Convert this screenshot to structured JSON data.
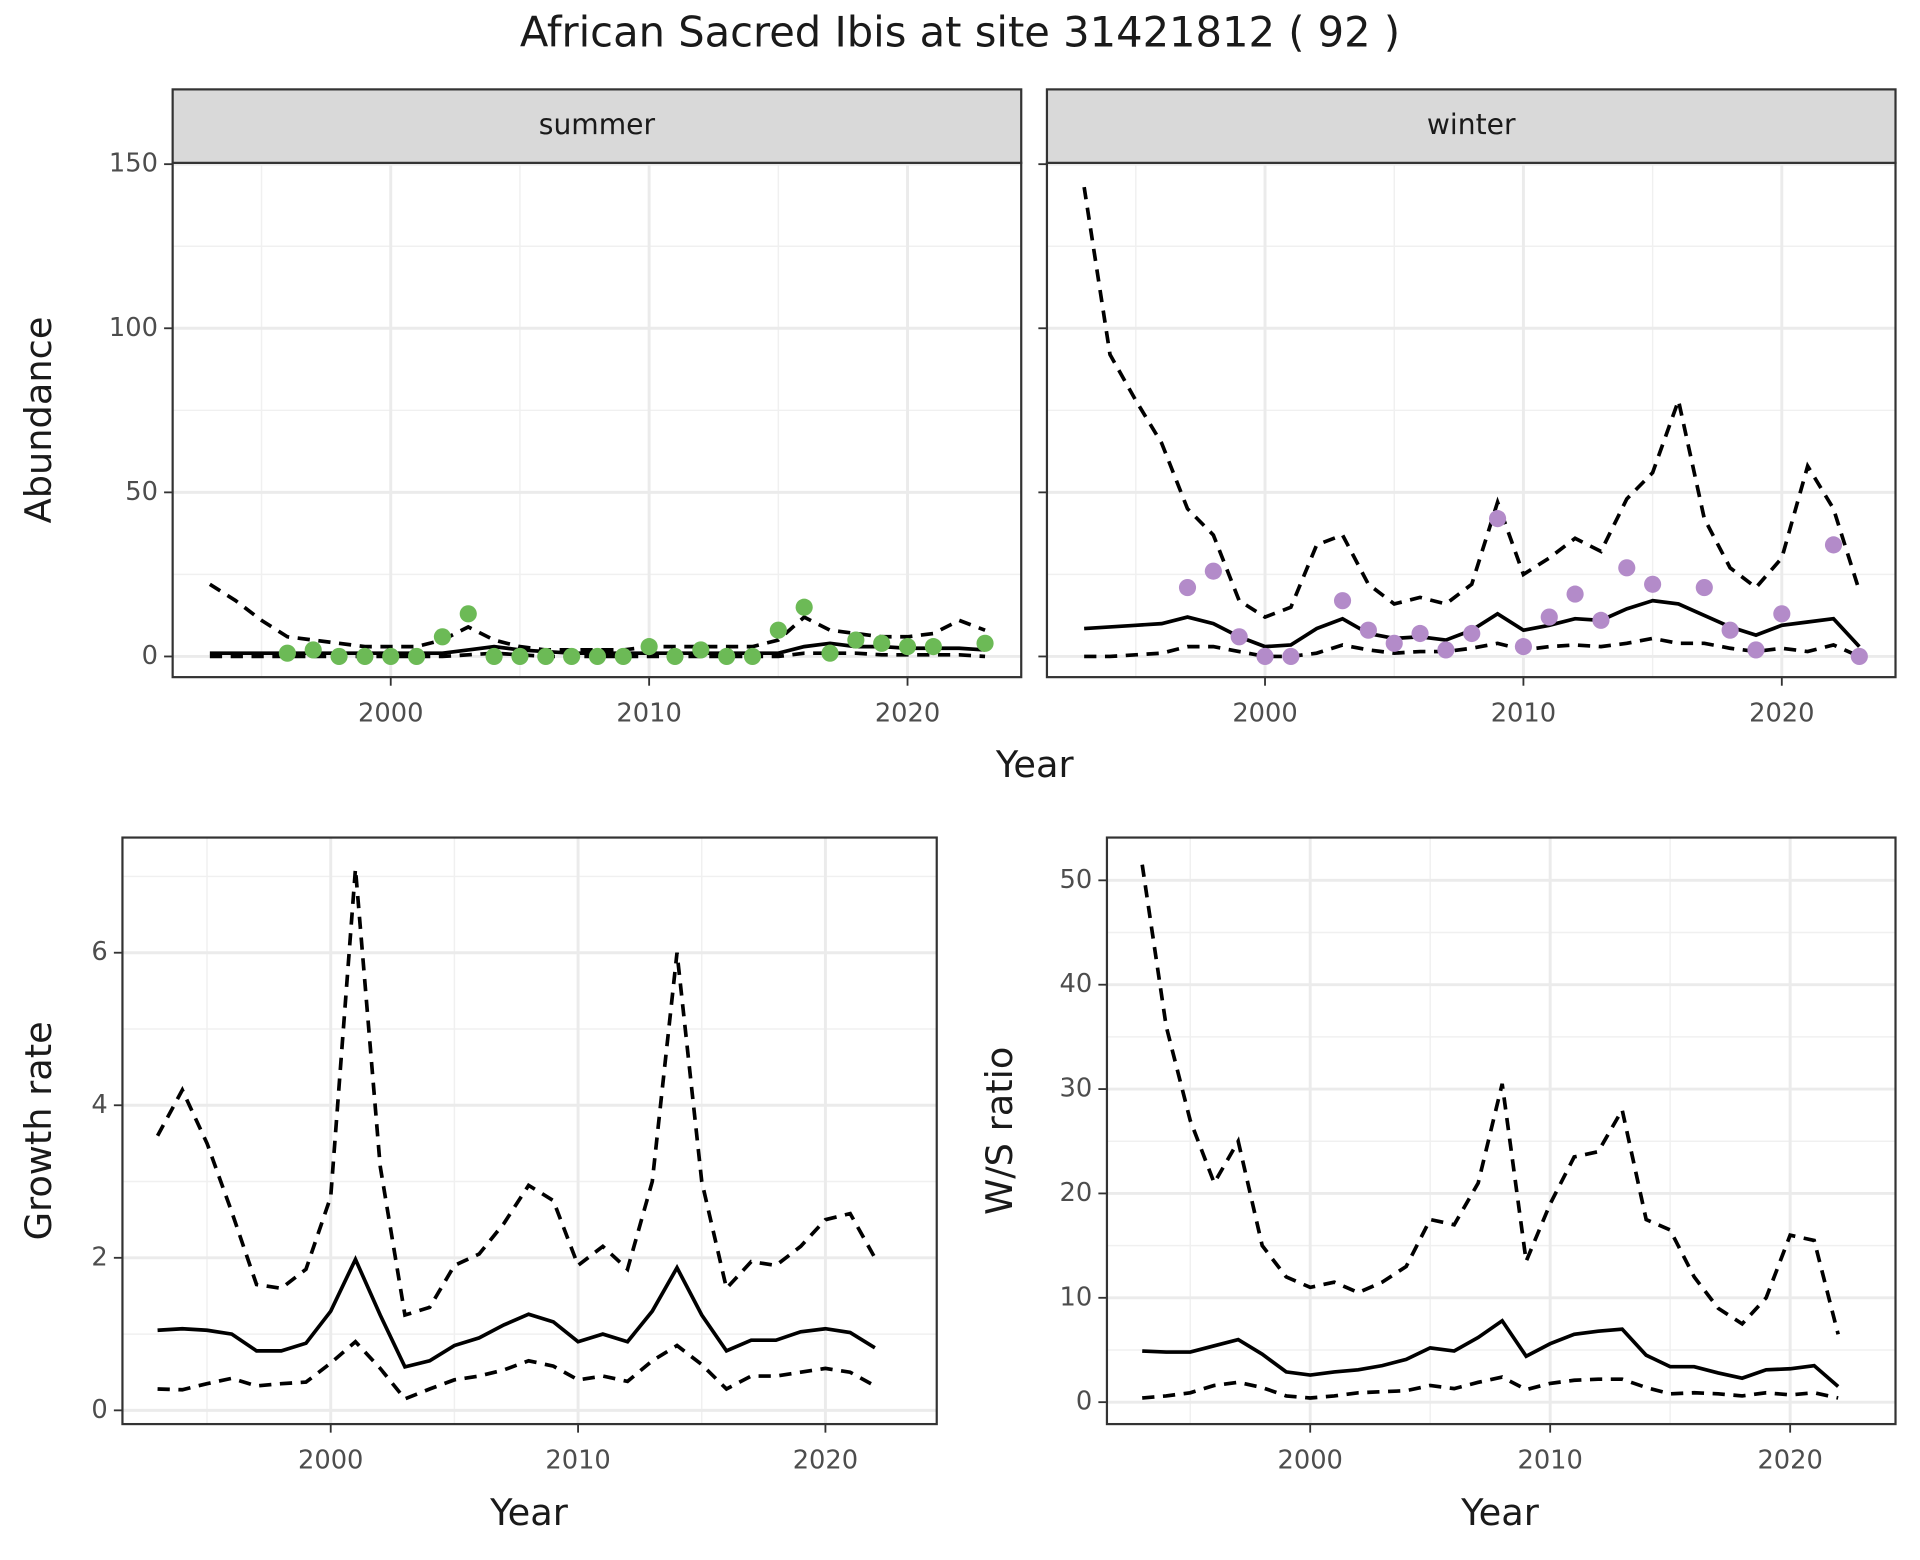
{
  "title": "African Sacred Ibis at site 31421812 ( 92 )",
  "chart_data": [
    {
      "type": "line",
      "strip": "summer",
      "xlabel": "Year",
      "ylabel": "Abundance",
      "x": [
        1993,
        1994,
        1995,
        1996,
        1997,
        1998,
        1999,
        2000,
        2001,
        2002,
        2003,
        2004,
        2005,
        2006,
        2007,
        2008,
        2009,
        2010,
        2011,
        2012,
        2013,
        2014,
        2015,
        2016,
        2017,
        2018,
        2019,
        2020,
        2021,
        2022,
        2023
      ],
      "xlim": [
        1991.56,
        2024.4
      ],
      "xticks": [
        2000,
        2010,
        2020
      ],
      "xminor": [
        1995,
        2005,
        2015
      ],
      "ylim": [
        -6.3,
        150.4
      ],
      "yticks": [
        0,
        50,
        100,
        150
      ],
      "yminor": [
        25,
        75,
        125
      ],
      "grid": true,
      "series": [
        {
          "style": "solid",
          "color": "#000000",
          "values": [
            1,
            1,
            1,
            1,
            1,
            1,
            1,
            1,
            1,
            1,
            2,
            3,
            2,
            1.5,
            1,
            1,
            1,
            1,
            1,
            1,
            1,
            1,
            1,
            3,
            4,
            3,
            3,
            2.5,
            2.5,
            2.5,
            2
          ]
        },
        {
          "style": "dashed",
          "color": "#000000",
          "values": [
            22,
            17,
            11,
            6,
            5,
            4,
            3,
            3,
            3,
            5,
            9,
            5,
            3,
            2,
            2,
            2,
            2,
            3,
            3,
            3,
            3,
            3,
            5,
            12,
            8,
            7,
            6,
            6,
            7,
            11,
            8
          ]
        },
        {
          "style": "dashed",
          "color": "#000000",
          "values": [
            0,
            0,
            0,
            0,
            0,
            0,
            0,
            0,
            0,
            0,
            0.5,
            1,
            0.5,
            0,
            0,
            0,
            0,
            0,
            0,
            0,
            0,
            0,
            0,
            1,
            1,
            1,
            0.5,
            0.5,
            0.5,
            0.5,
            0
          ]
        },
        {
          "style": "points",
          "color": "#6cba56",
          "values": [
            null,
            null,
            null,
            1,
            2,
            0,
            0,
            0,
            0,
            6,
            13,
            0,
            0,
            0,
            0,
            0,
            0,
            3,
            0,
            2,
            0,
            0,
            8,
            15,
            1,
            5,
            4,
            3,
            3,
            null,
            4
          ]
        }
      ]
    },
    {
      "type": "line",
      "strip": "winter",
      "show_ytick_labels": false,
      "x": [
        1993,
        1994,
        1995,
        1996,
        1997,
        1998,
        1999,
        2000,
        2001,
        2002,
        2003,
        2004,
        2005,
        2006,
        2007,
        2008,
        2009,
        2010,
        2011,
        2012,
        2013,
        2014,
        2015,
        2016,
        2017,
        2018,
        2019,
        2020,
        2021,
        2022,
        2023
      ],
      "xlim": [
        1991.56,
        2024.4
      ],
      "xticks": [
        2000,
        2010,
        2020
      ],
      "xminor": [
        1995,
        2005,
        2015
      ],
      "ylim": [
        -6.3,
        150.4
      ],
      "yticks": [
        0,
        50,
        100,
        150
      ],
      "yminor": [
        25,
        75,
        125
      ],
      "grid": true,
      "series": [
        {
          "style": "solid",
          "color": "#000000",
          "values": [
            8.5,
            9,
            9.5,
            10,
            12,
            10,
            6,
            3,
            3.5,
            8.5,
            11.5,
            7,
            5.5,
            6,
            5,
            8,
            13,
            8,
            9.5,
            11.5,
            11,
            14.5,
            17,
            16,
            12.5,
            9,
            6.5,
            9.5,
            10.5,
            11.5,
            3
          ]
        },
        {
          "style": "dashed",
          "color": "#000000",
          "values": [
            143,
            92,
            78,
            65,
            45,
            37,
            17,
            12,
            15,
            34,
            37,
            22,
            16,
            18,
            16,
            22,
            47,
            25,
            30,
            36,
            32,
            48,
            56,
            78,
            42,
            27,
            21,
            30,
            58,
            45,
            20
          ]
        },
        {
          "style": "dashed",
          "color": "#000000",
          "values": [
            0,
            0,
            0.5,
            1,
            3,
            3,
            1.5,
            0,
            0,
            1,
            3.5,
            2,
            1,
            1.5,
            1.5,
            2.5,
            4,
            2,
            3,
            3.5,
            3,
            4,
            5.5,
            4,
            4,
            2.5,
            1.5,
            2.5,
            1.5,
            3.5,
            0
          ]
        },
        {
          "style": "points",
          "color": "#b38bc9",
          "values": [
            null,
            null,
            null,
            null,
            21,
            26,
            6,
            0,
            0,
            null,
            17,
            8,
            4,
            7,
            2,
            7,
            42,
            3,
            12,
            19,
            11,
            27,
            22,
            null,
            21,
            8,
            2,
            13,
            null,
            34,
            0
          ]
        }
      ]
    },
    {
      "type": "line",
      "xlabel": "Year",
      "ylabel": "Growth rate",
      "x": [
        1993,
        1994,
        1995,
        1996,
        1997,
        1998,
        1999,
        2000,
        2001,
        2002,
        2003,
        2004,
        2005,
        2006,
        2007,
        2008,
        2009,
        2010,
        2011,
        2012,
        2013,
        2014,
        2015,
        2016,
        2017,
        2018,
        2019,
        2020,
        2021,
        2022
      ],
      "xlim": [
        1991.58,
        2024.5
      ],
      "xticks": [
        2000,
        2010,
        2020
      ],
      "xminor": [
        1995,
        2005,
        2015
      ],
      "ylim": [
        -0.18,
        7.51
      ],
      "yticks": [
        0,
        2,
        4,
        6
      ],
      "yminor": [
        1,
        3,
        5,
        7
      ],
      "grid": true,
      "series": [
        {
          "style": "solid",
          "color": "#000000",
          "values": [
            1.05,
            1.07,
            1.05,
            1.0,
            0.78,
            0.78,
            0.88,
            1.3,
            1.98,
            1.25,
            0.57,
            0.65,
            0.85,
            0.95,
            1.12,
            1.26,
            1.16,
            0.9,
            1.0,
            0.9,
            1.3,
            1.87,
            1.25,
            0.78,
            0.92,
            0.92,
            1.03,
            1.07,
            1.02,
            0.82
          ]
        },
        {
          "style": "dashed",
          "color": "#000000",
          "values": [
            3.6,
            4.2,
            3.5,
            2.6,
            1.65,
            1.6,
            1.85,
            2.8,
            7.1,
            3.2,
            1.25,
            1.35,
            1.9,
            2.05,
            2.45,
            2.95,
            2.75,
            1.9,
            2.15,
            1.85,
            3.0,
            6.0,
            3.0,
            1.6,
            1.95,
            1.9,
            2.15,
            2.5,
            2.58,
            2.0
          ]
        },
        {
          "style": "dashed",
          "color": "#000000",
          "values": [
            0.28,
            0.27,
            0.35,
            0.42,
            0.32,
            0.35,
            0.37,
            0.62,
            0.9,
            0.55,
            0.15,
            0.28,
            0.4,
            0.45,
            0.53,
            0.65,
            0.58,
            0.4,
            0.45,
            0.38,
            0.65,
            0.85,
            0.6,
            0.28,
            0.45,
            0.45,
            0.5,
            0.55,
            0.5,
            0.32
          ]
        }
      ]
    },
    {
      "type": "line",
      "xlabel": "Year",
      "ylabel": "W/S ratio",
      "x": [
        1993,
        1994,
        1995,
        1996,
        1997,
        1998,
        1999,
        2000,
        2001,
        2002,
        2003,
        2004,
        2005,
        2006,
        2007,
        2008,
        2009,
        2010,
        2011,
        2012,
        2013,
        2014,
        2015,
        2016,
        2017,
        2018,
        2019,
        2020,
        2021,
        2022
      ],
      "xlim": [
        1991.53,
        2024.39
      ],
      "xticks": [
        2000,
        2010,
        2020
      ],
      "xminor": [
        1995,
        2005,
        2015
      ],
      "ylim": [
        -2.1,
        54.1
      ],
      "yticks": [
        0,
        10,
        20,
        30,
        40,
        50
      ],
      "yminor": [
        5,
        15,
        25,
        35,
        45
      ],
      "grid": true,
      "series": [
        {
          "style": "solid",
          "color": "#000000",
          "values": [
            4.9,
            4.8,
            4.8,
            5.4,
            6.0,
            4.6,
            2.9,
            2.6,
            2.9,
            3.1,
            3.5,
            4.1,
            5.2,
            4.9,
            6.2,
            7.8,
            4.4,
            5.6,
            6.5,
            6.8,
            7.0,
            4.5,
            3.4,
            3.4,
            2.8,
            2.3,
            3.1,
            3.2,
            3.5,
            1.5
          ]
        },
        {
          "style": "dashed",
          "color": "#000000",
          "values": [
            51.5,
            36,
            27,
            21,
            25,
            15,
            12,
            11,
            11.5,
            10.5,
            11.5,
            13,
            17.5,
            17,
            21,
            30.5,
            13.5,
            19,
            23.5,
            24,
            28,
            17.5,
            16.5,
            12,
            9,
            7.5,
            10,
            16,
            15.5,
            6.5
          ]
        },
        {
          "style": "dashed",
          "color": "#000000",
          "values": [
            0.4,
            0.6,
            0.9,
            1.6,
            1.9,
            1.4,
            0.6,
            0.4,
            0.6,
            0.9,
            1.0,
            1.1,
            1.6,
            1.3,
            1.9,
            2.4,
            1.2,
            1.8,
            2.1,
            2.2,
            2.2,
            1.4,
            0.8,
            0.9,
            0.8,
            0.6,
            0.9,
            0.7,
            0.9,
            0.4
          ]
        }
      ]
    }
  ]
}
